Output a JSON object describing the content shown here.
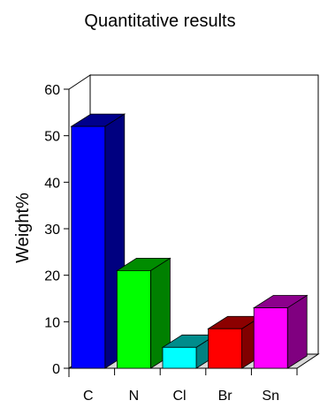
{
  "chart_data": {
    "type": "bar",
    "style": "3d",
    "title": "Quantitative results",
    "xlabel": "",
    "ylabel": "Weight%",
    "categories": [
      "C",
      "N",
      "Cl",
      "Br",
      "Sn"
    ],
    "values": [
      52,
      21,
      4.5,
      8.5,
      13
    ],
    "colors": [
      "#0000FF",
      "#00FF00",
      "#00FFFF",
      "#FF0000",
      "#FF00FF"
    ],
    "ylim": [
      0,
      60
    ],
    "yticks": [
      0,
      10,
      20,
      30,
      40,
      50,
      60
    ],
    "grid": false,
    "legend": "none"
  }
}
